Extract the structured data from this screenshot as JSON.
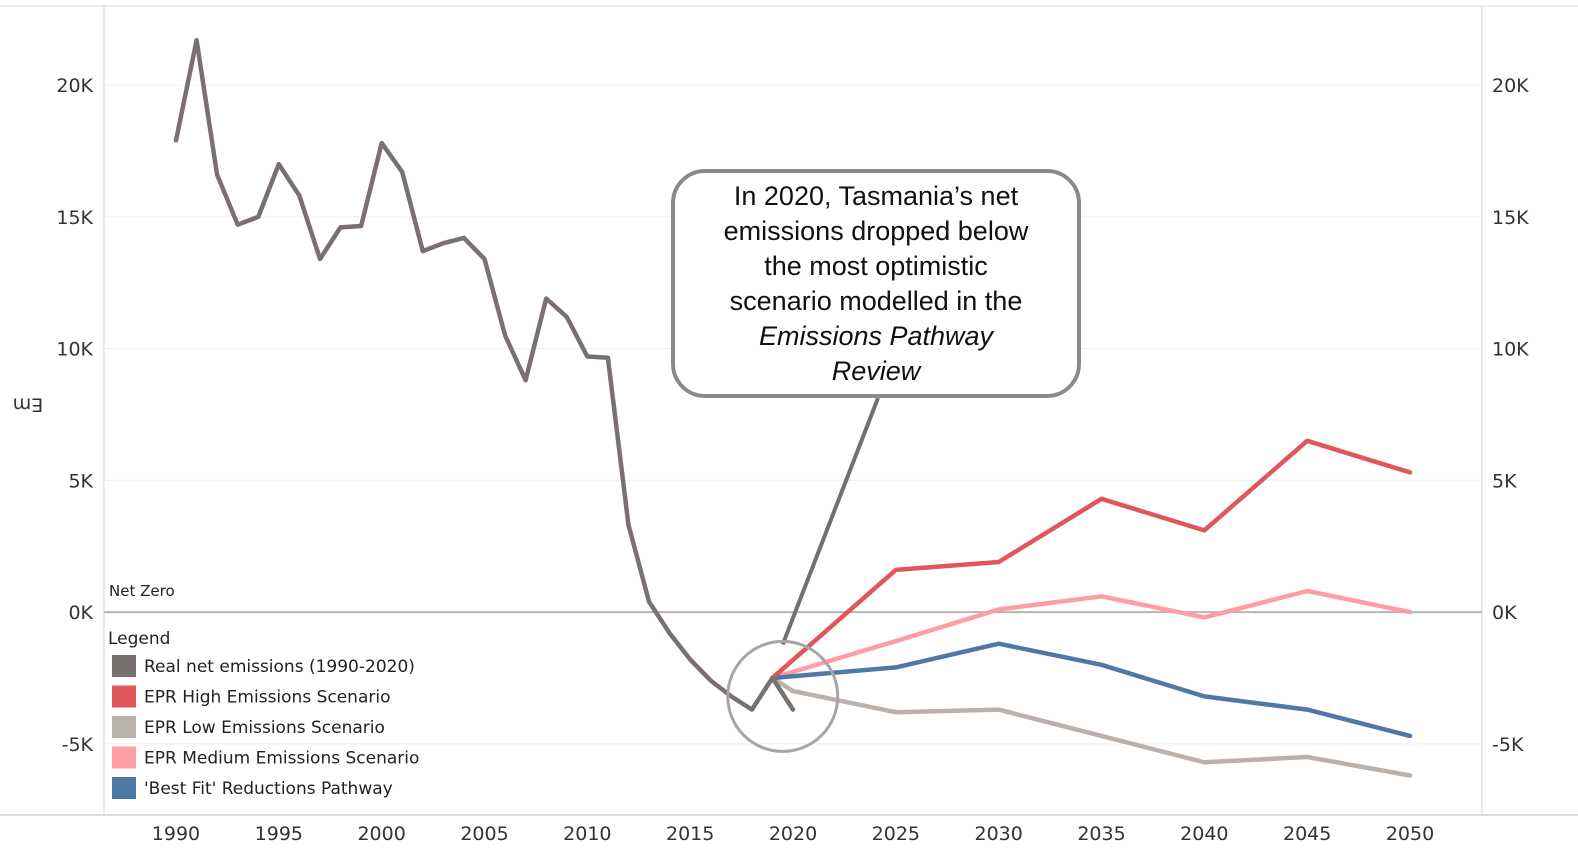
{
  "chart_data": {
    "type": "line",
    "title": "",
    "ylabel": "Em",
    "ylim": [
      -7700,
      23000
    ],
    "xlim": [
      1986.5,
      2053.5
    ],
    "y_ticks": [
      20000,
      15000,
      10000,
      5000,
      0,
      -5000
    ],
    "y_tick_labels": [
      "20K",
      "15K",
      "10K",
      "5K",
      "0K",
      "-5K"
    ],
    "x_ticks": [
      1990,
      1995,
      2000,
      2005,
      2010,
      2015,
      2020,
      2025,
      2030,
      2035,
      2040,
      2045,
      2050
    ],
    "grid": true,
    "reference_line": {
      "y": 0,
      "label": "Net Zero"
    },
    "series": [
      {
        "name": "Real net emissions (1990-2020)",
        "color": "#7a7070",
        "points": [
          [
            1990,
            17900
          ],
          [
            1991,
            21700
          ],
          [
            1992,
            16600
          ],
          [
            1993,
            14700
          ],
          [
            1994,
            15000
          ],
          [
            1995,
            17000
          ],
          [
            1996,
            15800
          ],
          [
            1997,
            13400
          ],
          [
            1998,
            14600
          ],
          [
            1999,
            14650
          ],
          [
            2000,
            17800
          ],
          [
            2001,
            16700
          ],
          [
            2002,
            13700
          ],
          [
            2003,
            14000
          ],
          [
            2004,
            14200
          ],
          [
            2005,
            13400
          ],
          [
            2006,
            10500
          ],
          [
            2007,
            8800
          ],
          [
            2008,
            11900
          ],
          [
            2009,
            11200
          ],
          [
            2010,
            9700
          ],
          [
            2011,
            9650
          ],
          [
            2012,
            3300
          ],
          [
            2013,
            400
          ],
          [
            2014,
            -800
          ],
          [
            2015,
            -1800
          ],
          [
            2016,
            -2600
          ],
          [
            2017,
            -3200
          ],
          [
            2018,
            -3700
          ],
          [
            2019,
            -2500
          ],
          [
            2020,
            -3700
          ]
        ]
      },
      {
        "name": "EPR High Emissions Scenario",
        "color": "#e0565b",
        "points": [
          [
            2019,
            -2500
          ],
          [
            2025,
            1600
          ],
          [
            2030,
            1900
          ],
          [
            2035,
            4300
          ],
          [
            2040,
            3100
          ],
          [
            2045,
            6500
          ],
          [
            2050,
            5300
          ]
        ]
      },
      {
        "name": "EPR Low Emissions Scenario",
        "color": "#bab0ac",
        "points": [
          [
            2019,
            -2500
          ],
          [
            2020,
            -3000
          ],
          [
            2025,
            -3800
          ],
          [
            2030,
            -3700
          ],
          [
            2035,
            -4700
          ],
          [
            2040,
            -5700
          ],
          [
            2045,
            -5500
          ],
          [
            2050,
            -6200
          ]
        ]
      },
      {
        "name": "EPR Medium Emissions Scenario",
        "color": "#ff9da7",
        "points": [
          [
            2019,
            -2500
          ],
          [
            2025,
            -1100
          ],
          [
            2030,
            100
          ],
          [
            2035,
            600
          ],
          [
            2040,
            -200
          ],
          [
            2045,
            800
          ],
          [
            2050,
            0
          ]
        ]
      },
      {
        "name": "'Best Fit' Reductions Pathway",
        "color": "#4e79a7",
        "points": [
          [
            2019,
            -2500
          ],
          [
            2025,
            -2100
          ],
          [
            2030,
            -1200
          ],
          [
            2035,
            -2000
          ],
          [
            2040,
            -3200
          ],
          [
            2045,
            -3700
          ],
          [
            2050,
            -4700
          ]
        ]
      }
    ],
    "legend_title": "Legend",
    "legend_position": "bottom-left",
    "annotation": {
      "lines": [
        "In 2020, Tasmania’s net",
        "emissions dropped below",
        "the most optimistic",
        "scenario modelled in the"
      ],
      "italic_lines": [
        "Emissions Pathway",
        "Review"
      ],
      "target": [
        2019.5,
        -3200
      ]
    }
  }
}
